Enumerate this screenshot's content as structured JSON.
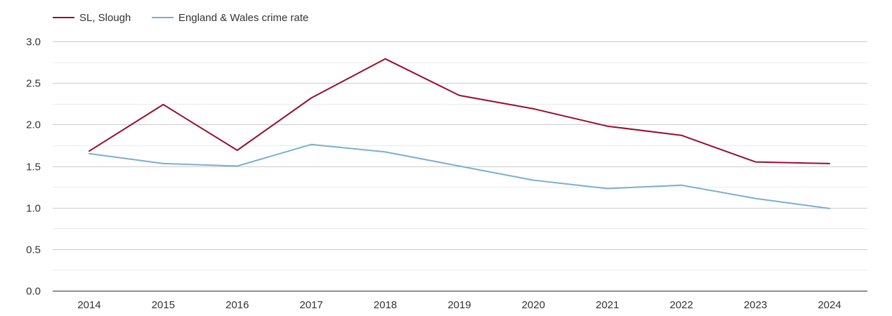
{
  "chart_data": {
    "type": "line",
    "title": "",
    "xlabel": "",
    "ylabel": "",
    "categories": [
      "2014",
      "2015",
      "2016",
      "2017",
      "2018",
      "2019",
      "2020",
      "2021",
      "2022",
      "2023",
      "2024"
    ],
    "ylim": [
      0,
      3
    ],
    "yticks": [
      "0.0",
      "0.5",
      "1.0",
      "1.5",
      "2.0",
      "2.5",
      "3.0"
    ],
    "ytick_values": [
      0,
      0.5,
      1,
      1.5,
      2,
      2.5,
      3
    ],
    "grid": true,
    "legend_position": "top-left",
    "series": [
      {
        "name": "SL, Slough",
        "color": "#9b0d2e",
        "values": [
          1.68,
          2.24,
          1.69,
          2.32,
          2.79,
          2.35,
          2.19,
          1.98,
          1.87,
          1.55,
          1.53
        ]
      },
      {
        "name": "England & Wales crime rate",
        "color": "#7aafd0",
        "values": [
          1.65,
          1.53,
          1.5,
          1.76,
          1.67,
          1.5,
          1.33,
          1.23,
          1.27,
          1.11,
          0.99
        ]
      }
    ]
  }
}
